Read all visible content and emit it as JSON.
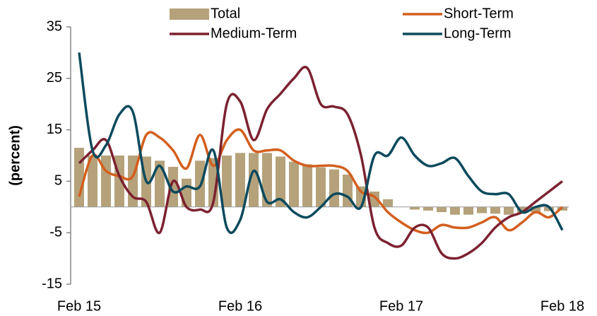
{
  "chart_data": {
    "type": "combo",
    "y_label": "(percent)",
    "categories": [
      "Feb 15",
      null,
      null,
      null,
      null,
      null,
      null,
      null,
      null,
      null,
      null,
      null,
      "Feb 16",
      null,
      null,
      null,
      null,
      null,
      null,
      null,
      null,
      null,
      null,
      null,
      "Feb 17",
      null,
      null,
      null,
      null,
      null,
      null,
      null,
      null,
      null,
      null,
      null,
      "Feb 18"
    ],
    "ylim": [
      -15,
      35
    ],
    "yticks": [
      -15,
      -5,
      5,
      15,
      25,
      35
    ],
    "series": [
      {
        "name": "Total",
        "type": "bar",
        "color": "#b5a27b",
        "values": [
          11.5,
          10,
          10,
          10,
          10,
          9.8,
          9,
          7.8,
          5.5,
          9,
          9.5,
          10,
          10.5,
          10.5,
          10.5,
          9.8,
          8.8,
          8.3,
          7.7,
          7.3,
          6.3,
          4,
          3,
          1.5,
          0,
          -0.5,
          -0.7,
          -1,
          -1.5,
          -1.5,
          -1.2,
          -1.3,
          -1.5,
          -1.2,
          -1,
          -0.8,
          -0.7
        ]
      },
      {
        "name": "Short-Term",
        "type": "line",
        "color": "#d35f1e",
        "values": [
          2,
          10,
          7,
          6,
          6,
          14,
          13.5,
          11,
          7.5,
          14,
          8,
          13,
          15,
          11,
          11,
          11,
          9,
          8,
          8,
          8,
          7,
          3,
          2,
          -1,
          -3,
          -4.5,
          -5,
          -3.5,
          -4,
          -4,
          -3,
          -2,
          -4.5,
          -3,
          -1,
          -2,
          0
        ]
      },
      {
        "name": "Medium-Term",
        "type": "line",
        "color": "#7b2230",
        "values": [
          8.5,
          11,
          13,
          6,
          2,
          1,
          -5,
          5,
          0,
          -0.5,
          1,
          20,
          20.5,
          13,
          19,
          22,
          25,
          27,
          20,
          19.5,
          18,
          10,
          -4,
          -7,
          -7.5,
          -4,
          -4,
          -9,
          -10,
          -9,
          -7,
          -4,
          -2,
          -1,
          1,
          3,
          5
        ]
      },
      {
        "name": "Long-Term",
        "type": "line",
        "color": "#0c4a5d",
        "values": [
          30,
          11,
          12,
          18,
          18.5,
          5,
          8,
          3,
          4,
          4,
          11,
          -4,
          -2.5,
          7,
          1,
          1.5,
          -1,
          -2,
          0,
          2.5,
          2,
          0,
          10,
          10,
          13.5,
          10,
          8,
          8.5,
          9.5,
          6,
          3,
          2.5,
          2.5,
          -1,
          0,
          0,
          -4.5
        ]
      }
    ]
  }
}
